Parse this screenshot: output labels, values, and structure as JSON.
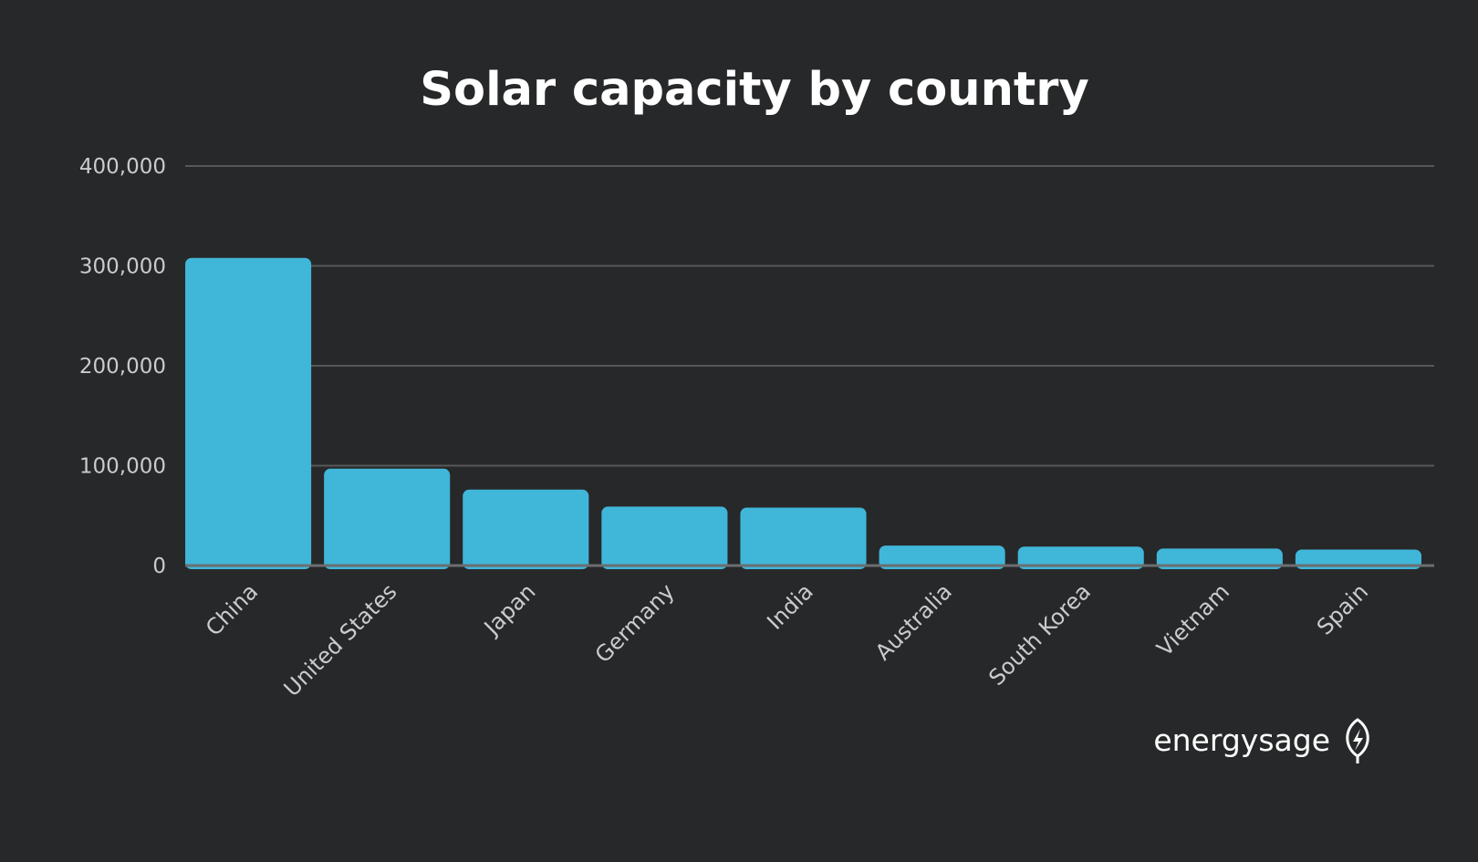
{
  "colors": {
    "background": "#272829",
    "bar": "#40b6d9",
    "title": "#ffffff",
    "tick_text": "#c9cbcc"
  },
  "logo": {
    "text": "energysage",
    "icon": "leaf-bolt-icon"
  },
  "chart_data": {
    "type": "bar",
    "title": "Solar capacity by country",
    "xlabel": "",
    "ylabel": "",
    "categories": [
      "China",
      "United States",
      "Japan",
      "Germany",
      "India",
      "Australia",
      "South Korea",
      "Vietnam",
      "Spain"
    ],
    "values": [
      308000,
      97000,
      76000,
      59000,
      58000,
      20000,
      19000,
      17000,
      16000
    ],
    "ylim": [
      0,
      400000
    ],
    "y_ticks": [
      0,
      100000,
      200000,
      300000,
      400000
    ],
    "y_tick_labels": [
      "0",
      "100,000",
      "200,000",
      "300,000",
      "400,000"
    ],
    "grid": true,
    "legend": "none"
  }
}
